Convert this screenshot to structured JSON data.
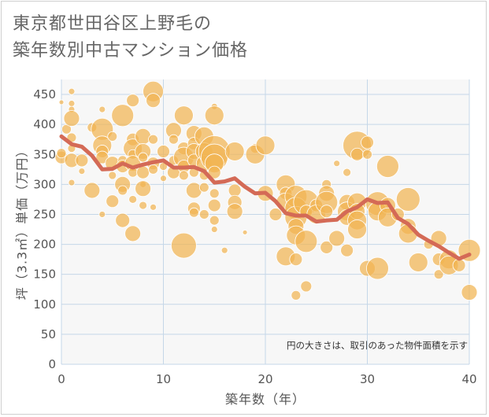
{
  "title_lines": [
    "東京都世田谷区上野毛の",
    "築年数別中古マンション価格"
  ],
  "annotation": "円の大きさは、取引のあった物件面積を示す",
  "colors": {
    "background": "#ffffff",
    "plot_background": "#f7f7f7",
    "grid": "#c5d7e8",
    "bubble": "#f1b452",
    "bubble_stroke": "#ffffff",
    "line": "#d46a56",
    "text": "#555555"
  },
  "chart_data": {
    "type": "scatter",
    "xlabel": "築年数（年）",
    "ylabel": "坪（3.3㎡）単価（万円）",
    "xlim": [
      0,
      40
    ],
    "ylim": [
      0,
      475
    ],
    "xticks": [
      0,
      10,
      20,
      30,
      40
    ],
    "yticks": [
      0,
      50,
      100,
      150,
      200,
      250,
      300,
      350,
      400,
      450
    ],
    "grid": true,
    "series": [
      {
        "kind": "bubble",
        "points": [
          {
            "x": 0,
            "y": 437,
            "s": 3
          },
          {
            "x": 0,
            "y": 345,
            "s": 8
          },
          {
            "x": 0,
            "y": 352,
            "s": 6
          },
          {
            "x": 0.5,
            "y": 392,
            "s": 6
          },
          {
            "x": 1,
            "y": 455,
            "s": 4
          },
          {
            "x": 1,
            "y": 435,
            "s": 4
          },
          {
            "x": 1,
            "y": 425,
            "s": 4
          },
          {
            "x": 1,
            "y": 410,
            "s": 10
          },
          {
            "x": 1,
            "y": 378,
            "s": 6
          },
          {
            "x": 1,
            "y": 360,
            "s": 5
          },
          {
            "x": 1,
            "y": 340,
            "s": 9
          },
          {
            "x": 1,
            "y": 303,
            "s": 4
          },
          {
            "x": 2,
            "y": 340,
            "s": 8
          },
          {
            "x": 2,
            "y": 322,
            "s": 4
          },
          {
            "x": 3,
            "y": 395,
            "s": 6
          },
          {
            "x": 3,
            "y": 290,
            "s": 10
          },
          {
            "x": 4,
            "y": 392,
            "s": 14
          },
          {
            "x": 4,
            "y": 365,
            "s": 12
          },
          {
            "x": 4,
            "y": 355,
            "s": 8
          },
          {
            "x": 4,
            "y": 345,
            "s": 8
          },
          {
            "x": 4,
            "y": 425,
            "s": 4
          },
          {
            "x": 4,
            "y": 250,
            "s": 4
          },
          {
            "x": 5,
            "y": 380,
            "s": 6
          },
          {
            "x": 5,
            "y": 335,
            "s": 9
          },
          {
            "x": 5,
            "y": 315,
            "s": 5
          },
          {
            "x": 5,
            "y": 272,
            "s": 8
          },
          {
            "x": 6,
            "y": 415,
            "s": 14
          },
          {
            "x": 6,
            "y": 340,
            "s": 6
          },
          {
            "x": 6,
            "y": 330,
            "s": 8
          },
          {
            "x": 6,
            "y": 300,
            "s": 10
          },
          {
            "x": 6,
            "y": 290,
            "s": 6
          },
          {
            "x": 6,
            "y": 240,
            "s": 9
          },
          {
            "x": 7,
            "y": 440,
            "s": 8
          },
          {
            "x": 7,
            "y": 375,
            "s": 8
          },
          {
            "x": 7,
            "y": 360,
            "s": 12
          },
          {
            "x": 7,
            "y": 350,
            "s": 6
          },
          {
            "x": 7,
            "y": 335,
            "s": 10
          },
          {
            "x": 7,
            "y": 320,
            "s": 6
          },
          {
            "x": 7,
            "y": 275,
            "s": 5
          },
          {
            "x": 7,
            "y": 218,
            "s": 10
          },
          {
            "x": 8,
            "y": 380,
            "s": 10
          },
          {
            "x": 8,
            "y": 355,
            "s": 10
          },
          {
            "x": 8,
            "y": 345,
            "s": 6
          },
          {
            "x": 8,
            "y": 320,
            "s": 8
          },
          {
            "x": 8,
            "y": 300,
            "s": 4
          },
          {
            "x": 8,
            "y": 293,
            "s": 10
          },
          {
            "x": 8,
            "y": 265,
            "s": 5
          },
          {
            "x": 9,
            "y": 455,
            "s": 13
          },
          {
            "x": 9,
            "y": 440,
            "s": 9
          },
          {
            "x": 9,
            "y": 375,
            "s": 6
          },
          {
            "x": 9,
            "y": 335,
            "s": 8
          },
          {
            "x": 9,
            "y": 325,
            "s": 6
          },
          {
            "x": 9,
            "y": 262,
            "s": 4
          },
          {
            "x": 10,
            "y": 355,
            "s": 8
          },
          {
            "x": 10,
            "y": 330,
            "s": 5
          },
          {
            "x": 10,
            "y": 310,
            "s": 4
          },
          {
            "x": 11,
            "y": 390,
            "s": 10
          },
          {
            "x": 11,
            "y": 375,
            "s": 6
          },
          {
            "x": 11,
            "y": 340,
            "s": 6
          },
          {
            "x": 11,
            "y": 320,
            "s": 8
          },
          {
            "x": 12,
            "y": 415,
            "s": 12
          },
          {
            "x": 12,
            "y": 360,
            "s": 8
          },
          {
            "x": 12,
            "y": 345,
            "s": 13
          },
          {
            "x": 12,
            "y": 330,
            "s": 8
          },
          {
            "x": 12,
            "y": 315,
            "s": 6
          },
          {
            "x": 12,
            "y": 198,
            "s": 16
          },
          {
            "x": 13,
            "y": 385,
            "s": 10
          },
          {
            "x": 13,
            "y": 368,
            "s": 8
          },
          {
            "x": 13,
            "y": 355,
            "s": 10
          },
          {
            "x": 13,
            "y": 340,
            "s": 8
          },
          {
            "x": 13,
            "y": 320,
            "s": 6
          },
          {
            "x": 13,
            "y": 290,
            "s": 10
          },
          {
            "x": 13,
            "y": 260,
            "s": 8
          },
          {
            "x": 13,
            "y": 253,
            "s": 6
          },
          {
            "x": 14,
            "y": 380,
            "s": 12
          },
          {
            "x": 14,
            "y": 355,
            "s": 11
          },
          {
            "x": 14,
            "y": 335,
            "s": 10
          },
          {
            "x": 14,
            "y": 315,
            "s": 6
          },
          {
            "x": 14,
            "y": 295,
            "s": 6
          },
          {
            "x": 14,
            "y": 250,
            "s": 6
          },
          {
            "x": 15,
            "y": 430,
            "s": 4
          },
          {
            "x": 15,
            "y": 415,
            "s": 12
          },
          {
            "x": 15,
            "y": 355,
            "s": 20
          },
          {
            "x": 15,
            "y": 345,
            "s": 17
          },
          {
            "x": 15,
            "y": 335,
            "s": 12
          },
          {
            "x": 15,
            "y": 320,
            "s": 8
          },
          {
            "x": 15,
            "y": 285,
            "s": 6
          },
          {
            "x": 15,
            "y": 265,
            "s": 8
          },
          {
            "x": 15,
            "y": 240,
            "s": 6
          },
          {
            "x": 15,
            "y": 225,
            "s": 4
          },
          {
            "x": 16,
            "y": 190,
            "s": 4
          },
          {
            "x": 17,
            "y": 355,
            "s": 12
          },
          {
            "x": 17,
            "y": 290,
            "s": 8
          },
          {
            "x": 17,
            "y": 270,
            "s": 9
          },
          {
            "x": 17,
            "y": 255,
            "s": 10
          },
          {
            "x": 18,
            "y": 220,
            "s": 3
          },
          {
            "x": 19,
            "y": 360,
            "s": 6
          },
          {
            "x": 19,
            "y": 350,
            "s": 12
          },
          {
            "x": 20,
            "y": 365,
            "s": 12
          },
          {
            "x": 20,
            "y": 285,
            "s": 10
          },
          {
            "x": 21,
            "y": 250,
            "s": 8
          },
          {
            "x": 22,
            "y": 180,
            "s": 12
          },
          {
            "x": 22,
            "y": 300,
            "s": 12
          },
          {
            "x": 22,
            "y": 285,
            "s": 8
          },
          {
            "x": 22,
            "y": 270,
            "s": 12
          },
          {
            "x": 23,
            "y": 280,
            "s": 14
          },
          {
            "x": 23,
            "y": 260,
            "s": 14
          },
          {
            "x": 23,
            "y": 245,
            "s": 14
          },
          {
            "x": 23,
            "y": 230,
            "s": 10
          },
          {
            "x": 23,
            "y": 215,
            "s": 12
          },
          {
            "x": 23,
            "y": 175,
            "s": 8
          },
          {
            "x": 23,
            "y": 115,
            "s": 6
          },
          {
            "x": 24,
            "y": 270,
            "s": 16
          },
          {
            "x": 24,
            "y": 255,
            "s": 8
          },
          {
            "x": 24,
            "y": 205,
            "s": 14
          },
          {
            "x": 24,
            "y": 130,
            "s": 7
          },
          {
            "x": 25,
            "y": 265,
            "s": 8
          },
          {
            "x": 25,
            "y": 250,
            "s": 12
          },
          {
            "x": 26,
            "y": 300,
            "s": 6
          },
          {
            "x": 26,
            "y": 285,
            "s": 10
          },
          {
            "x": 26,
            "y": 270,
            "s": 14
          },
          {
            "x": 26,
            "y": 255,
            "s": 8
          },
          {
            "x": 26,
            "y": 195,
            "s": 8
          },
          {
            "x": 27,
            "y": 335,
            "s": 4
          },
          {
            "x": 27,
            "y": 210,
            "s": 10
          },
          {
            "x": 28,
            "y": 320,
            "s": 5
          },
          {
            "x": 28,
            "y": 270,
            "s": 10
          },
          {
            "x": 28,
            "y": 255,
            "s": 12
          },
          {
            "x": 28,
            "y": 245,
            "s": 10
          },
          {
            "x": 28,
            "y": 190,
            "s": 8
          },
          {
            "x": 29,
            "y": 365,
            "s": 18
          },
          {
            "x": 29,
            "y": 350,
            "s": 8
          },
          {
            "x": 29,
            "y": 270,
            "s": 12
          },
          {
            "x": 29,
            "y": 255,
            "s": 10
          },
          {
            "x": 29,
            "y": 240,
            "s": 12
          },
          {
            "x": 29,
            "y": 225,
            "s": 12
          },
          {
            "x": 30,
            "y": 370,
            "s": 8
          },
          {
            "x": 30,
            "y": 350,
            "s": 6
          },
          {
            "x": 30,
            "y": 160,
            "s": 10
          },
          {
            "x": 31,
            "y": 268,
            "s": 15
          },
          {
            "x": 31,
            "y": 255,
            "s": 12
          },
          {
            "x": 31,
            "y": 160,
            "s": 14
          },
          {
            "x": 32,
            "y": 330,
            "s": 14
          },
          {
            "x": 32,
            "y": 265,
            "s": 10
          },
          {
            "x": 32,
            "y": 245,
            "s": 12
          },
          {
            "x": 33,
            "y": 250,
            "s": 8
          },
          {
            "x": 34,
            "y": 275,
            "s": 15
          },
          {
            "x": 34,
            "y": 230,
            "s": 10
          },
          {
            "x": 34,
            "y": 218,
            "s": 12
          },
          {
            "x": 35,
            "y": 170,
            "s": 12
          },
          {
            "x": 36,
            "y": 200,
            "s": 6
          },
          {
            "x": 37,
            "y": 210,
            "s": 10
          },
          {
            "x": 37,
            "y": 175,
            "s": 8
          },
          {
            "x": 37,
            "y": 150,
            "s": 6
          },
          {
            "x": 38,
            "y": 175,
            "s": 12
          },
          {
            "x": 38,
            "y": 165,
            "s": 12
          },
          {
            "x": 39,
            "y": 165,
            "s": 8
          },
          {
            "x": 40,
            "y": 190,
            "s": 14
          },
          {
            "x": 40,
            "y": 120,
            "s": 10
          }
        ]
      },
      {
        "kind": "line",
        "x": [
          0,
          1,
          2,
          3,
          4,
          5,
          6,
          7,
          8,
          9,
          10,
          11,
          12,
          13,
          14,
          15,
          16,
          17,
          18,
          19,
          20,
          21,
          22,
          23,
          24,
          25,
          26,
          27,
          28,
          29,
          30,
          31,
          32,
          33,
          34,
          35,
          36,
          37,
          38,
          39,
          40
        ],
        "y": [
          380,
          367,
          363,
          348,
          325,
          326,
          335,
          328,
          333,
          337,
          340,
          328,
          328,
          329,
          322,
          303,
          305,
          310,
          296,
          285,
          286,
          272,
          252,
          248,
          248,
          238,
          240,
          241,
          255,
          262,
          275,
          269,
          270,
          244,
          234,
          216,
          206,
          197,
          186,
          176,
          183
        ]
      }
    ]
  }
}
